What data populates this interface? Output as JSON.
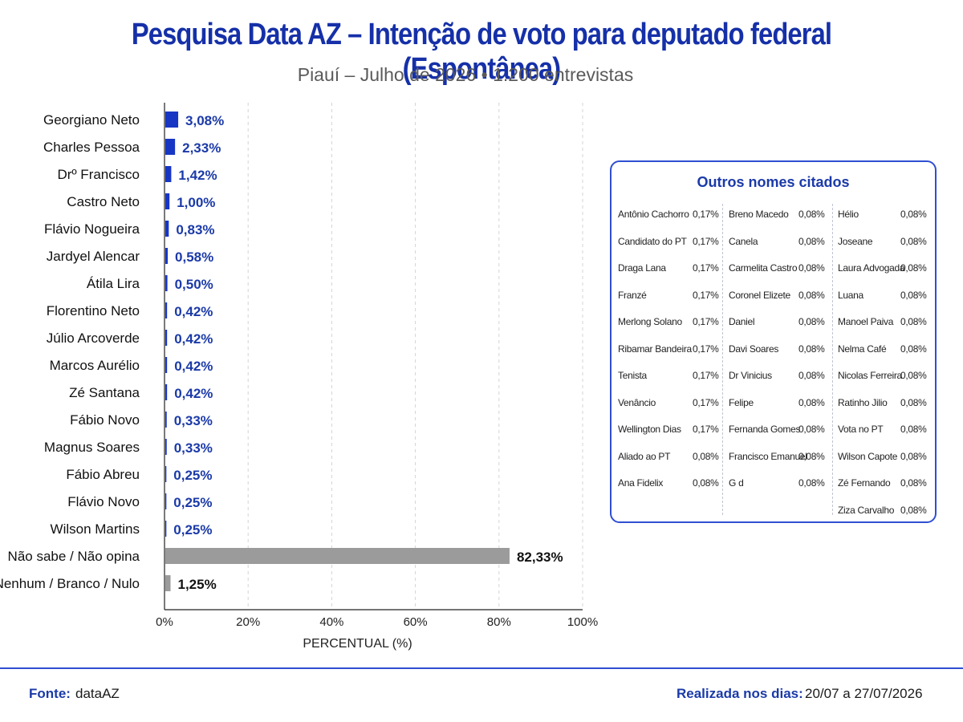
{
  "header": {
    "title": "Pesquisa Data AZ – Intenção de voto para deputado federal (Espontânea)",
    "subtitle": "Piauí – Julho de 2026 • 1.200 entrevistas"
  },
  "colors": {
    "title": "#1530a8",
    "bar_primary": "#1736c4",
    "bar_secondary": "#9b9b9b",
    "value_label": "#1b3aa8",
    "box_border": "#2f4fd1"
  },
  "chart_data": {
    "type": "bar",
    "orientation": "horizontal",
    "categories": [
      "Georgiano Neto",
      "Charles Pessoa",
      "Drº Francisco",
      "Castro Neto",
      "Flávio Nogueira",
      "Jardyel Alencar",
      "Átila Lira",
      "Florentino Neto",
      "Júlio Arcoverde",
      "Marcos Aurélio",
      "Zé Santana",
      "Fábio Novo",
      "Magnus Soares",
      "Fábio Abreu",
      "Flávio Novo",
      "Wilson Martins",
      "Não sabe / Não opina",
      "Nenhum / Branco / Nulo"
    ],
    "values": [
      3.08,
      2.33,
      1.42,
      1.0,
      0.83,
      0.58,
      0.5,
      0.42,
      0.42,
      0.42,
      0.42,
      0.33,
      0.33,
      0.25,
      0.25,
      0.25,
      82.33,
      1.25
    ],
    "value_labels": [
      "3,08%",
      "2,33%",
      "1,42%",
      "1,00%",
      "0,83%",
      "0,58%",
      "0,50%",
      "0,42%",
      "0,42%",
      "0,42%",
      "0,42%",
      "0,33%",
      "0,33%",
      "0,25%",
      "0,25%",
      "0,25%",
      "82,33%",
      "1,25%"
    ],
    "bar_colors": [
      "#1736c4",
      "#1736c4",
      "#1736c4",
      "#1736c4",
      "#1736c4",
      "#1736c4",
      "#1736c4",
      "#1736c4",
      "#1736c4",
      "#1736c4",
      "#1736c4",
      "#1736c4",
      "#1736c4",
      "#1736c4",
      "#1736c4",
      "#1736c4",
      "#9b9b9b",
      "#9b9b9b"
    ],
    "xlim": [
      0,
      100
    ],
    "xticks": [
      0,
      20,
      40,
      60,
      80,
      100
    ],
    "xtick_labels": [
      "0%",
      "20%",
      "40%",
      "60%",
      "80%",
      "100%"
    ],
    "xlabel": "PERCENTUAL (%)",
    "grid": "vertical dashed"
  },
  "others": {
    "title": "Outros nomes citados",
    "columns": [
      [
        {
          "name": "Antônio Cachorro",
          "pct": "0,17%"
        },
        {
          "name": "Candidato do PT",
          "pct": "0,17%"
        },
        {
          "name": "Draga Lana",
          "pct": "0,17%"
        },
        {
          "name": "Franzé",
          "pct": "0,17%"
        },
        {
          "name": "Merlong Solano",
          "pct": "0,17%"
        },
        {
          "name": "Ribamar Bandeira",
          "pct": "0,17%"
        },
        {
          "name": "Tenista",
          "pct": "0,17%"
        },
        {
          "name": "Venâncio",
          "pct": "0,17%"
        },
        {
          "name": "Wellington Dias",
          "pct": "0,17%"
        },
        {
          "name": "Aliado ao PT",
          "pct": "0,08%"
        },
        {
          "name": "Ana Fidelix",
          "pct": "0,08%"
        }
      ],
      [
        {
          "name": "Breno Macedo",
          "pct": "0,08%"
        },
        {
          "name": "Canela",
          "pct": "0,08%"
        },
        {
          "name": "Carmelita Castro",
          "pct": "0,08%"
        },
        {
          "name": "Coronel Elizete",
          "pct": "0,08%"
        },
        {
          "name": "Daniel",
          "pct": "0,08%"
        },
        {
          "name": "Davi Soares",
          "pct": "0,08%"
        },
        {
          "name": "Dr Vinicius",
          "pct": "0,08%"
        },
        {
          "name": "Felipe",
          "pct": "0,08%"
        },
        {
          "name": "Fernanda Gomes",
          "pct": "0,08%"
        },
        {
          "name": "Francisco Emanuel",
          "pct": "0,08%"
        },
        {
          "name": "G d",
          "pct": "0,08%"
        }
      ],
      [
        {
          "name": "Hélio",
          "pct": "0,08%"
        },
        {
          "name": "Joseane",
          "pct": "0,08%"
        },
        {
          "name": "Laura Advogada",
          "pct": "0,08%"
        },
        {
          "name": "Luana",
          "pct": "0,08%"
        },
        {
          "name": "Manoel Paiva",
          "pct": "0,08%"
        },
        {
          "name": "Nelma Café",
          "pct": "0,08%"
        },
        {
          "name": "Nicolas Ferreira",
          "pct": "0,08%"
        },
        {
          "name": "Ratinho Jilio",
          "pct": "0,08%"
        },
        {
          "name": "Vota no PT",
          "pct": "0,08%"
        },
        {
          "name": "Wilson Capote",
          "pct": "0,08%"
        },
        {
          "name": "Zé Fernando",
          "pct": "0,08%"
        },
        {
          "name": "Ziza Carvalho",
          "pct": "0,08%"
        }
      ]
    ]
  },
  "footer": {
    "source_label": "Fonte:",
    "source_value": "dataAZ",
    "period_label": "Realizada nos dias:",
    "period_value": "20/07 a 27/07/2026"
  }
}
